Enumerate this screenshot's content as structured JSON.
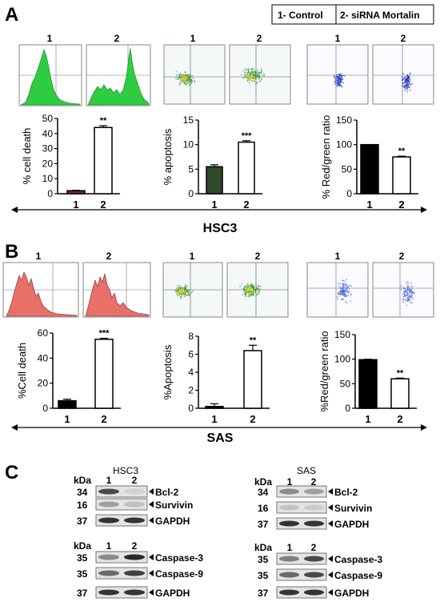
{
  "panels": {
    "a": "A",
    "b": "B",
    "c": "C"
  },
  "legend": {
    "control": "1- Control",
    "sirna": "2- siRNA Mortalin"
  },
  "sample_labels": {
    "one": "1",
    "two": "2"
  },
  "cell_lines": {
    "hsc3": "HSC3",
    "sas": "SAS"
  },
  "western_labels": {
    "kda": "kDa"
  },
  "western": {
    "hsc3_top": [
      {
        "kda": "34",
        "protein": "Bcl-2"
      },
      {
        "kda": "16",
        "protein": "Survivin"
      },
      {
        "kda": "37",
        "protein": "GAPDH"
      }
    ],
    "hsc3_bottom": [
      {
        "kda": "35",
        "protein": "Caspase-3"
      },
      {
        "kda": "35",
        "protein": "Caspase-9"
      },
      {
        "kda": "37",
        "protein": "GAPDH"
      }
    ],
    "sas_top": [
      {
        "kda": "34",
        "protein": "Bcl-2"
      },
      {
        "kda": "16",
        "protein": "Survivin"
      },
      {
        "kda": "37",
        "protein": "GAPDH"
      }
    ],
    "sas_bottom": [
      {
        "kda": "35",
        "protein": "Caspase-3"
      },
      {
        "kda": "35",
        "protein": "Caspase-9"
      },
      {
        "kda": "37",
        "protein": "GAPDH"
      }
    ]
  },
  "colors": {
    "histogram_hsc3": "#2ecc40",
    "histogram_sas": "#e8706a",
    "scatter_apoptosis": "#3a9a3a",
    "scatter_ratio": "#2a3fbf",
    "bar_dark_red": "#8b1e2a",
    "bar_dark_green": "#2e4a2a"
  },
  "chart_data": [
    {
      "type": "bar",
      "id": "hsc3_death",
      "categories": [
        "1",
        "2"
      ],
      "values": [
        2,
        44
      ],
      "errors": [
        0.3,
        1.2
      ],
      "ylabel": "% cell death",
      "ylim": [
        0,
        50
      ],
      "ticks": [
        "0",
        "10",
        "20",
        "30",
        "40",
        "50"
      ],
      "sig": "**",
      "fills": [
        "#8b1e2a",
        "#ffffff"
      ]
    },
    {
      "type": "bar",
      "id": "hsc3_apop",
      "categories": [
        "1",
        "2"
      ],
      "values": [
        5.5,
        10.5
      ],
      "errors": [
        0.4,
        0.3
      ],
      "ylabel": "% apoptosis",
      "ylim": [
        0,
        15
      ],
      "ticks": [
        "0",
        "5",
        "10",
        "15"
      ],
      "sig": "***",
      "fills": [
        "#2e4a2a",
        "#ffffff"
      ]
    },
    {
      "type": "bar",
      "id": "hsc3_ratio",
      "categories": [
        "1",
        "2"
      ],
      "values": [
        100,
        75
      ],
      "errors": [
        0,
        1.5
      ],
      "ylabel": "% Red/green ratio",
      "ylim": [
        0,
        150
      ],
      "ticks": [
        "0",
        "50",
        "100",
        "150"
      ],
      "sig": "**",
      "fills": [
        "#000000",
        "#ffffff"
      ]
    },
    {
      "type": "bar",
      "id": "sas_death",
      "categories": [
        "1",
        "2"
      ],
      "values": [
        6,
        55
      ],
      "errors": [
        1.2,
        0.8
      ],
      "ylabel": "%Cell death",
      "ylim": [
        0,
        60
      ],
      "ticks": [
        "0",
        "20",
        "40",
        "60"
      ],
      "sig": "***",
      "fills": [
        "#000000",
        "#ffffff"
      ]
    },
    {
      "type": "bar",
      "id": "sas_apop",
      "categories": [
        "1",
        "2"
      ],
      "values": [
        0.2,
        6.4
      ],
      "errors": [
        0.3,
        0.6
      ],
      "ylabel": "%Apoptosis",
      "ylim": [
        0,
        8
      ],
      "ticks": [
        "0",
        "2",
        "4",
        "6",
        "8"
      ],
      "sig": "**",
      "fills": [
        "#000000",
        "#ffffff"
      ]
    },
    {
      "type": "bar",
      "id": "sas_ratio",
      "categories": [
        "1",
        "2"
      ],
      "values": [
        99,
        60
      ],
      "errors": [
        1,
        1.5
      ],
      "ylabel": "%Red/green ratio",
      "ylim": [
        0,
        150
      ],
      "ticks": [
        "0",
        "50",
        "100",
        "150"
      ],
      "sig": "**",
      "fills": [
        "#000000",
        "#ffffff"
      ]
    }
  ]
}
